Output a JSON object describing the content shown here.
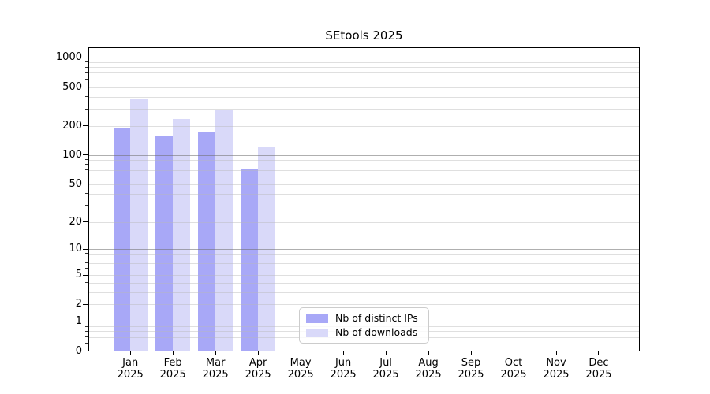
{
  "chart_data": {
    "type": "bar",
    "title": "SEtools 2025",
    "categories": [
      "Jan 2025",
      "Feb 2025",
      "Mar 2025",
      "Apr 2025",
      "May 2025",
      "Jun 2025",
      "Jul 2025",
      "Aug 2025",
      "Sep 2025",
      "Oct 2025",
      "Nov 2025",
      "Dec 2025"
    ],
    "series": [
      {
        "name": "Nb of distinct IPs",
        "color": "#a8a8f7",
        "values": [
          187,
          156,
          171,
          71,
          null,
          null,
          null,
          null,
          null,
          null,
          null,
          null
        ]
      },
      {
        "name": "Nb of downloads",
        "color": "#d9d9f9",
        "values": [
          385,
          235,
          290,
          123,
          null,
          null,
          null,
          null,
          null,
          null,
          null,
          null
        ]
      }
    ],
    "y_scale": "log10(value+1)",
    "y_ticks": [
      0,
      1,
      2,
      5,
      10,
      20,
      50,
      100,
      200,
      500,
      1000
    ],
    "y_major_ticks": [
      1,
      10,
      100,
      1000
    ],
    "ylim": [
      0,
      1280
    ],
    "xlabel": "",
    "ylabel": "",
    "grid": true,
    "legend_position": "lower center",
    "colors": {
      "axis": "#000000",
      "grid_major": "#b0b0b0",
      "grid_minor": "#e6e6e6",
      "background": "#ffffff"
    }
  }
}
